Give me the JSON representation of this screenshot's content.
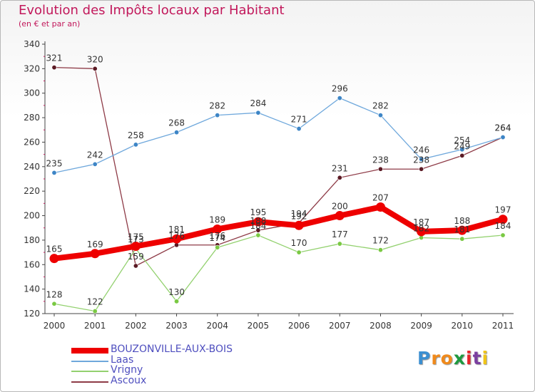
{
  "title": "Evolution des Impôts locaux par Habitant",
  "subtitle": "(en € et par an)",
  "brand": {
    "letters": [
      "P",
      "r",
      "o",
      "x",
      "i",
      "t",
      "i"
    ],
    "colors": [
      "#3b8fd1",
      "#f08a1c",
      "#f08a1c",
      "#1e9a3f",
      "#e8262b",
      "#7b3fa0",
      "#f0c419"
    ]
  },
  "chart_data": {
    "type": "line",
    "x": [
      "2000",
      "2001",
      "2002",
      "2003",
      "2004",
      "2005",
      "2006",
      "2007",
      "2008",
      "2009",
      "2010",
      "2011"
    ],
    "ylim": [
      120,
      340
    ],
    "yticks": [
      "120",
      "140",
      "160",
      "180",
      "200",
      "220",
      "240",
      "260",
      "280",
      "300",
      "320",
      "340"
    ],
    "grid": false,
    "legend_position": "bottom-left",
    "series": [
      {
        "name": "BOUZONVILLE-AUX-BOIS",
        "color": "#ee0000",
        "emphasis": true,
        "values": [
          165,
          169,
          175,
          181,
          189,
          195,
          192,
          200,
          207,
          187,
          188,
          197
        ],
        "labels": [
          "165",
          "169",
          "175",
          "181",
          "189",
          "195",
          "192",
          "200",
          "207",
          "187",
          "188",
          "197"
        ]
      },
      {
        "name": "Laas",
        "color": "#6fa8dc",
        "dot": "#3d85c6",
        "values": [
          235,
          242,
          258,
          268,
          282,
          284,
          271,
          296,
          282,
          246,
          254,
          264
        ],
        "labels": [
          "235",
          "242",
          "258",
          "268",
          "282",
          "284",
          "271",
          "296",
          "282",
          "246",
          "254",
          "264"
        ]
      },
      {
        "name": "Vrigny",
        "color": "#93d16f",
        "dot": "#7ac943",
        "values": [
          128,
          122,
          173,
          130,
          174,
          184,
          170,
          177,
          172,
          182,
          181,
          184
        ],
        "labels": [
          "128",
          "122",
          "173",
          "130",
          "174",
          "184",
          "170",
          "177",
          "172",
          "182",
          "181",
          "184"
        ]
      },
      {
        "name": "Ascoux",
        "color": "#8e3b47",
        "dot": "#5b1a24",
        "values": [
          321,
          320,
          159,
          176,
          176,
          188,
          194,
          231,
          238,
          238,
          249,
          264
        ],
        "labels": [
          "321",
          "320",
          "159",
          "176",
          "176",
          "188",
          "194",
          "231",
          "238",
          "238",
          "249",
          "264"
        ]
      }
    ]
  }
}
